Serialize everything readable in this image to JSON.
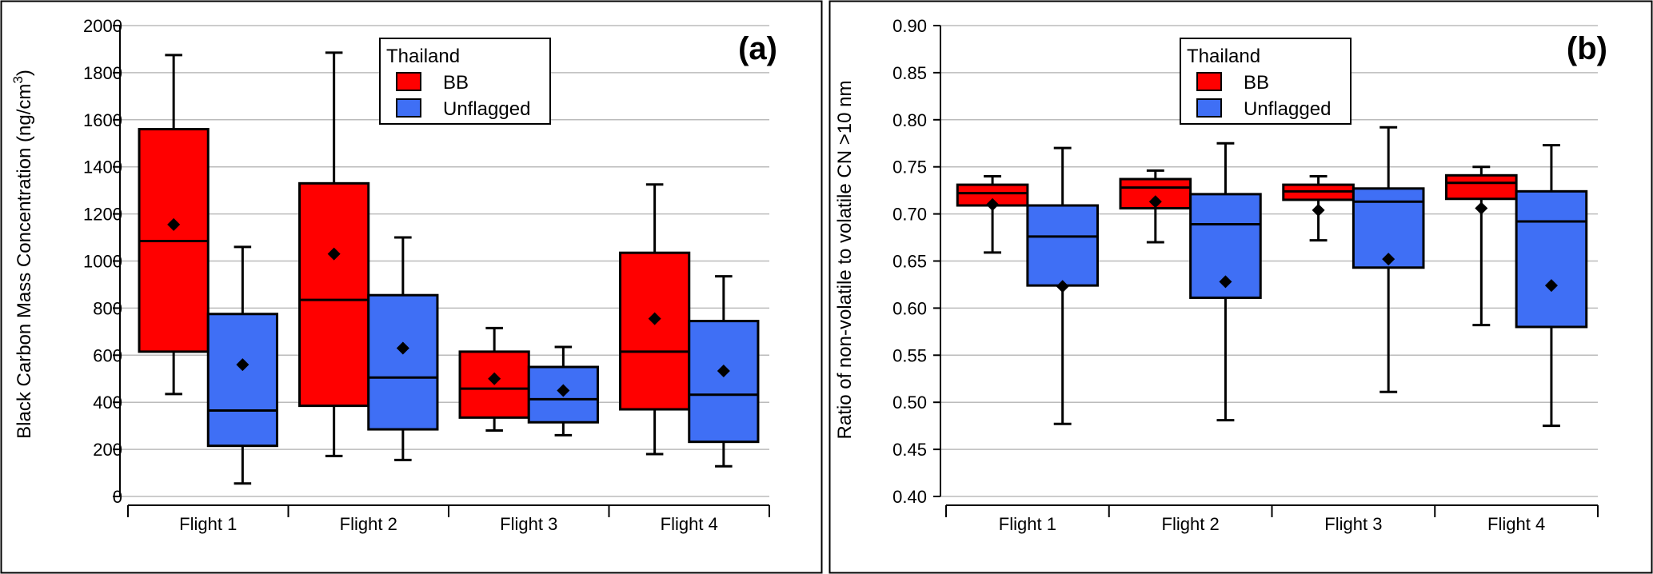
{
  "colors": {
    "bb": "#ff0000",
    "unflagged": "#3f6ff5",
    "grid": "#bbbbbb",
    "axis": "#000000"
  },
  "chart_data": [
    {
      "type": "box",
      "panel_label": "(a)",
      "ylabel": "Black Carbon Mass Concentration (ng/cm",
      "ylabel_sup": "3",
      "ylabel_close": ")",
      "xlabel": "",
      "ylim": [
        0,
        2000
      ],
      "yticks": [
        0,
        200,
        400,
        600,
        800,
        1000,
        1200,
        1400,
        1600,
        1800,
        2000
      ],
      "ytick_labels": [
        "0",
        "200",
        "400",
        "600",
        "800",
        "1000",
        "1200",
        "1400",
        "1600",
        "1800",
        "2000"
      ],
      "grid": true,
      "legend": {
        "title": "Thailand",
        "position": "top-center",
        "entries": [
          "BB",
          "Unflagged"
        ]
      },
      "categories": [
        "Flight 1",
        "Flight 2",
        "Flight 3",
        "Flight 4"
      ],
      "series": [
        {
          "name": "BB",
          "boxes": [
            {
              "min": 435,
              "q1": 615,
              "median": 1085,
              "q3": 1560,
              "max": 1875,
              "mean": 1155
            },
            {
              "min": 172,
              "q1": 385,
              "median": 835,
              "q3": 1330,
              "max": 1885,
              "mean": 1030
            },
            {
              "min": 280,
              "q1": 335,
              "median": 458,
              "q3": 615,
              "max": 715,
              "mean": 500
            },
            {
              "min": 180,
              "q1": 370,
              "median": 615,
              "q3": 1035,
              "max": 1325,
              "mean": 755
            }
          ]
        },
        {
          "name": "Unflagged",
          "boxes": [
            {
              "min": 55,
              "q1": 215,
              "median": 365,
              "q3": 775,
              "max": 1060,
              "mean": 560
            },
            {
              "min": 155,
              "q1": 285,
              "median": 505,
              "q3": 855,
              "max": 1100,
              "mean": 630
            },
            {
              "min": 260,
              "q1": 315,
              "median": 413,
              "q3": 550,
              "max": 635,
              "mean": 450
            },
            {
              "min": 128,
              "q1": 232,
              "median": 432,
              "q3": 745,
              "max": 935,
              "mean": 533
            }
          ]
        }
      ]
    },
    {
      "type": "box",
      "panel_label": "(b)",
      "ylabel": "Ratio of non-volatile to volatile CN >10 nm",
      "ylabel_sup": "",
      "ylabel_close": "",
      "xlabel": "",
      "ylim": [
        0.4,
        0.9
      ],
      "yticks": [
        0.4,
        0.45,
        0.5,
        0.55,
        0.6,
        0.65,
        0.7,
        0.75,
        0.8,
        0.85,
        0.9
      ],
      "ytick_labels": [
        "0.40",
        "0.45",
        "0.50",
        "0.55",
        "0.60",
        "0.65",
        "0.70",
        "0.75",
        "0.80",
        "0.85",
        "0.90"
      ],
      "grid": true,
      "legend": {
        "title": "Thailand",
        "position": "top-center",
        "entries": [
          "BB",
          "Unflagged"
        ]
      },
      "categories": [
        "Flight 1",
        "Flight 2",
        "Flight 3",
        "Flight 4"
      ],
      "series": [
        {
          "name": "BB",
          "boxes": [
            {
              "min": 0.659,
              "q1": 0.709,
              "median": 0.722,
              "q3": 0.731,
              "max": 0.74,
              "mean": 0.71
            },
            {
              "min": 0.67,
              "q1": 0.706,
              "median": 0.728,
              "q3": 0.737,
              "max": 0.746,
              "mean": 0.713
            },
            {
              "min": 0.672,
              "q1": 0.715,
              "median": 0.724,
              "q3": 0.731,
              "max": 0.74,
              "mean": 0.704
            },
            {
              "min": 0.582,
              "q1": 0.716,
              "median": 0.733,
              "q3": 0.741,
              "max": 0.75,
              "mean": 0.706
            }
          ]
        },
        {
          "name": "Unflagged",
          "boxes": [
            {
              "min": 0.477,
              "q1": 0.624,
              "median": 0.676,
              "q3": 0.709,
              "max": 0.77,
              "mean": 0.623
            },
            {
              "min": 0.481,
              "q1": 0.611,
              "median": 0.689,
              "q3": 0.721,
              "max": 0.775,
              "mean": 0.628
            },
            {
              "min": 0.511,
              "q1": 0.643,
              "median": 0.713,
              "q3": 0.727,
              "max": 0.792,
              "mean": 0.652
            },
            {
              "min": 0.475,
              "q1": 0.58,
              "median": 0.692,
              "q3": 0.724,
              "max": 0.773,
              "mean": 0.624
            }
          ]
        }
      ]
    }
  ]
}
